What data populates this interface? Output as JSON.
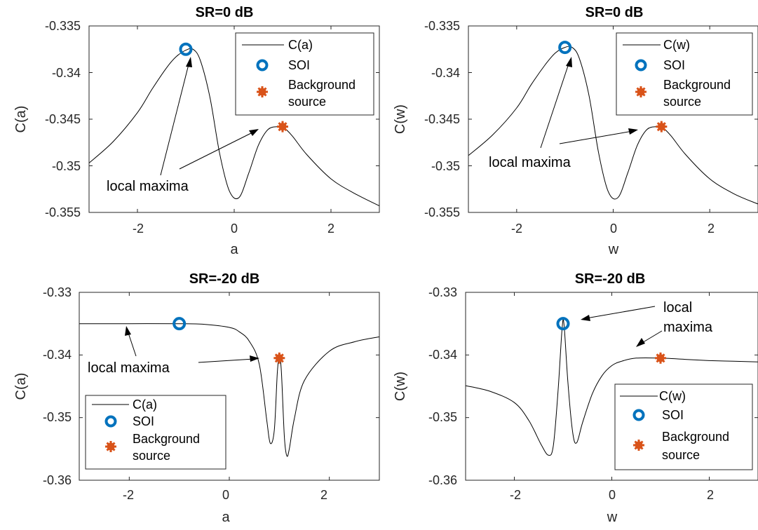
{
  "chart_data": [
    {
      "type": "line",
      "title": "SR=0 dB",
      "xlabel": "a",
      "ylabel": "C(a)",
      "xlim": [
        -3,
        3
      ],
      "ylim": [
        -0.355,
        -0.335
      ],
      "xticks": [
        -2,
        0,
        2
      ],
      "yticks": [
        -0.355,
        -0.35,
        -0.345,
        -0.34,
        -0.335
      ],
      "xtick_labels": [
        "-2",
        "0",
        "2"
      ],
      "ytick_labels": [
        "-0.355",
        "-0.35",
        "-0.345",
        "-0.34",
        "-0.335"
      ],
      "series": [
        {
          "name": "C(a)",
          "x": [
            -3,
            -2.5,
            -2,
            -1.7,
            -1.4,
            -1.2,
            -1.0,
            -0.85,
            -0.7,
            -0.5,
            -0.3,
            -0.1,
            0.1,
            0.3,
            0.5,
            0.7,
            0.9,
            1.0,
            1.2,
            1.5,
            2.0,
            2.5,
            3.0
          ],
          "y": [
            -0.3497,
            -0.3474,
            -0.3443,
            -0.3418,
            -0.3395,
            -0.3383,
            -0.3376,
            -0.3375,
            -0.3387,
            -0.3427,
            -0.3487,
            -0.3527,
            -0.3534,
            -0.3508,
            -0.3478,
            -0.3461,
            -0.3458,
            -0.3458,
            -0.3468,
            -0.3488,
            -0.3514,
            -0.353,
            -0.3543
          ]
        }
      ],
      "markers": [
        {
          "name": "SOI",
          "x": -1.0,
          "y": -0.3375
        },
        {
          "name": "Background source",
          "x": 1.0,
          "y": -0.3458
        }
      ],
      "legend": {
        "placement": "top-right",
        "entries": [
          "C(a)",
          "SOI",
          "Background",
          "source"
        ]
      },
      "annotations": [
        "local maxima"
      ]
    },
    {
      "type": "line",
      "title": "SR=0 dB",
      "xlabel": "w",
      "ylabel": "C(w)",
      "xlim": [
        -3,
        3
      ],
      "ylim": [
        -0.355,
        -0.335
      ],
      "xticks": [
        -2,
        0,
        2
      ],
      "yticks": [
        -0.355,
        -0.35,
        -0.345,
        -0.34,
        -0.335
      ],
      "xtick_labels": [
        "-2",
        "0",
        "2"
      ],
      "ytick_labels": [
        "-0.355",
        "-0.35",
        "-0.345",
        "-0.34",
        "-0.335"
      ],
      "series": [
        {
          "name": "C(w)",
          "x": [
            -3,
            -2.5,
            -2,
            -1.7,
            -1.4,
            -1.2,
            -1.0,
            -0.85,
            -0.7,
            -0.5,
            -0.3,
            -0.1,
            0.1,
            0.3,
            0.5,
            0.7,
            0.9,
            1.0,
            1.2,
            1.5,
            2.0,
            2.5,
            3.0
          ],
          "y": [
            -0.3489,
            -0.3467,
            -0.3438,
            -0.3413,
            -0.3391,
            -0.3379,
            -0.3373,
            -0.3373,
            -0.3385,
            -0.3425,
            -0.3487,
            -0.3528,
            -0.3534,
            -0.3508,
            -0.3478,
            -0.3461,
            -0.3458,
            -0.3458,
            -0.3468,
            -0.3488,
            -0.3514,
            -0.353,
            -0.3541
          ]
        }
      ],
      "markers": [
        {
          "name": "SOI",
          "x": -1.0,
          "y": -0.3373
        },
        {
          "name": "Background source",
          "x": 1.0,
          "y": -0.3458
        }
      ],
      "legend": {
        "placement": "top-right",
        "entries": [
          "C(w)",
          "SOI",
          "Background",
          "source"
        ]
      },
      "annotations": [
        "local maxima"
      ]
    },
    {
      "type": "line",
      "title": "SR=-20 dB",
      "xlabel": "a",
      "ylabel": "C(a)",
      "xlim": [
        -3,
        3
      ],
      "ylim": [
        -0.36,
        -0.33
      ],
      "xticks": [
        -2,
        0,
        2
      ],
      "yticks": [
        -0.36,
        -0.35,
        -0.34,
        -0.33
      ],
      "xtick_labels": [
        "-2",
        "0",
        "2"
      ],
      "ytick_labels": [
        "-0.36",
        "-0.35",
        "-0.34",
        "-0.33"
      ],
      "series": [
        {
          "name": "C(a)",
          "x": [
            -3,
            -2,
            -1,
            -0.5,
            0,
            0.2,
            0.4,
            0.6,
            0.75,
            0.82,
            0.9,
            0.96,
            1.0,
            1.04,
            1.1,
            1.15,
            1.2,
            1.3,
            1.5,
            2.0,
            2.5,
            3.0
          ],
          "y": [
            -0.335,
            -0.335,
            -0.335,
            -0.3351,
            -0.3356,
            -0.3363,
            -0.3378,
            -0.3415,
            -0.3505,
            -0.3541,
            -0.352,
            -0.3428,
            -0.3405,
            -0.3425,
            -0.353,
            -0.3561,
            -0.355,
            -0.3502,
            -0.3441,
            -0.3394,
            -0.3379,
            -0.3371
          ]
        }
      ],
      "markers": [
        {
          "name": "SOI",
          "x": -1.0,
          "y": -0.335
        },
        {
          "name": "Background source",
          "x": 1.0,
          "y": -0.3405
        }
      ],
      "legend": {
        "placement": "bottom-left",
        "entries": [
          "C(a)",
          "SOI",
          "Background",
          "source"
        ]
      },
      "annotations": [
        "local maxima"
      ]
    },
    {
      "type": "line",
      "title": "SR=-20 dB",
      "xlabel": "w",
      "ylabel": "C(w)",
      "xlim": [
        -3,
        3
      ],
      "ylim": [
        -0.36,
        -0.33
      ],
      "xticks": [
        -2,
        0,
        2
      ],
      "yticks": [
        -0.36,
        -0.35,
        -0.34,
        -0.33
      ],
      "xtick_labels": [
        "-2",
        "0",
        "2"
      ],
      "ytick_labels": [
        "-0.36",
        "-0.35",
        "-0.34",
        "-0.33"
      ],
      "series": [
        {
          "name": "C(w)",
          "x": [
            -3,
            -2.5,
            -2,
            -1.7,
            -1.45,
            -1.3,
            -1.2,
            -1.1,
            -1.02,
            -0.98,
            -0.9,
            -0.8,
            -0.72,
            -0.6,
            -0.4,
            -0.2,
            0,
            0.2,
            0.5,
            1.0,
            1.5,
            2.0,
            2.5,
            3.0
          ],
          "y": [
            -0.3449,
            -0.3458,
            -0.3476,
            -0.3505,
            -0.3543,
            -0.356,
            -0.3545,
            -0.3455,
            -0.3358,
            -0.3352,
            -0.3445,
            -0.3525,
            -0.354,
            -0.3508,
            -0.3462,
            -0.3433,
            -0.3417,
            -0.341,
            -0.3405,
            -0.3405,
            -0.3407,
            -0.3409,
            -0.341,
            -0.3411
          ]
        }
      ],
      "markers": [
        {
          "name": "SOI",
          "x": -1.0,
          "y": -0.335
        },
        {
          "name": "Background source",
          "x": 1.0,
          "y": -0.3405
        }
      ],
      "legend": {
        "placement": "bottom-right",
        "entries": [
          "C(w)",
          "SOI",
          "Background",
          "source"
        ]
      },
      "annotations": [
        "local",
        "maxima"
      ]
    }
  ],
  "colors": {
    "soi_marker": "#0072BD",
    "background_marker": "#D95319",
    "line": "#000000",
    "axes": "#262626"
  }
}
